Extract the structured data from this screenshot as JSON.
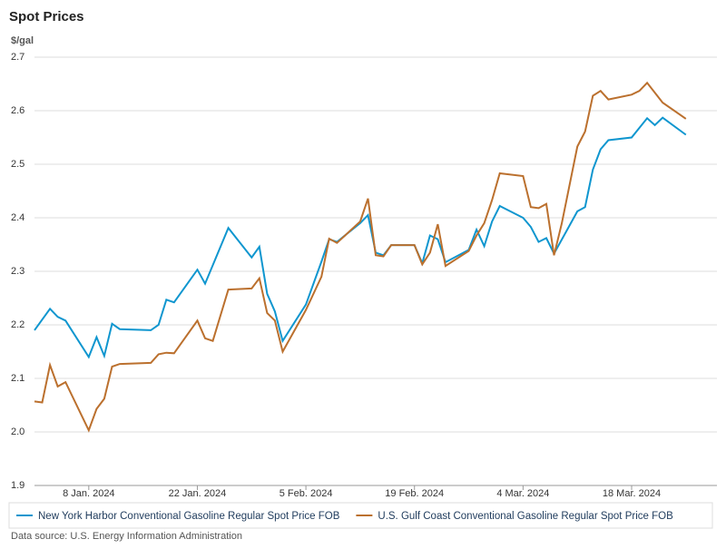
{
  "chart_data": {
    "type": "line",
    "title": "Spot Prices",
    "y_axis_label": "$/gal",
    "source": "Data source: U.S. Energy Information Administration",
    "xlim": [
      "2024-01-01",
      "2024-03-29"
    ],
    "xticks": [
      {
        "value": "2024-01-08",
        "label": "8 Jan. 2024"
      },
      {
        "value": "2024-01-22",
        "label": "22 Jan. 2024"
      },
      {
        "value": "2024-02-05",
        "label": "5 Feb. 2024"
      },
      {
        "value": "2024-02-19",
        "label": "19 Feb. 2024"
      },
      {
        "value": "2024-03-04",
        "label": "4 Mar. 2024"
      },
      {
        "value": "2024-03-18",
        "label": "18 Mar. 2024"
      }
    ],
    "ylim": [
      1.9,
      2.7
    ],
    "yticks": [
      1.9,
      {
        "value": 2,
        "label": "2.0"
      },
      2.1,
      2.2,
      2.3,
      2.4,
      2.5,
      2.6,
      2.7
    ],
    "grid": true,
    "series": [
      {
        "name": "New York Harbor Conventional Gasoline Regular Spot Price FOB",
        "color": "#0f96cf",
        "x": [
          "2024-01-01",
          "2024-01-03",
          "2024-01-04",
          "2024-01-05",
          "2024-01-08",
          "2024-01-09",
          "2024-01-10",
          "2024-01-11",
          "2024-01-12",
          "2024-01-16",
          "2024-01-17",
          "2024-01-18",
          "2024-01-19",
          "2024-01-22",
          "2024-01-23",
          "2024-01-26",
          "2024-01-29",
          "2024-01-30",
          "2024-01-31",
          "2024-02-01",
          "2024-02-02",
          "2024-02-05",
          "2024-02-07",
          "2024-02-08",
          "2024-02-09",
          "2024-02-12",
          "2024-02-13",
          "2024-02-14",
          "2024-02-15",
          "2024-02-16",
          "2024-02-19",
          "2024-02-20",
          "2024-02-21",
          "2024-02-22",
          "2024-02-23",
          "2024-02-26",
          "2024-02-27",
          "2024-02-28",
          "2024-02-29",
          "2024-03-01",
          "2024-03-04",
          "2024-03-05",
          "2024-03-06",
          "2024-03-07",
          "2024-03-08",
          "2024-03-11",
          "2024-03-12",
          "2024-03-13",
          "2024-03-14",
          "2024-03-15",
          "2024-03-18",
          "2024-03-20",
          "2024-03-21",
          "2024-03-22",
          "2024-03-25"
        ],
        "values": [
          2.19,
          2.23,
          2.215,
          2.208,
          2.14,
          2.177,
          2.142,
          2.202,
          2.192,
          2.19,
          2.2,
          2.247,
          2.242,
          2.303,
          2.277,
          2.381,
          2.326,
          2.346,
          2.258,
          2.225,
          2.17,
          2.238,
          2.318,
          2.36,
          2.355,
          2.39,
          2.405,
          2.335,
          2.33,
          2.349,
          2.349,
          2.315,
          2.367,
          2.36,
          2.317,
          2.34,
          2.378,
          2.347,
          2.393,
          2.422,
          2.4,
          2.383,
          2.355,
          2.362,
          2.333,
          2.412,
          2.42,
          2.49,
          2.528,
          2.545,
          2.55,
          2.586,
          2.573,
          2.587,
          2.555
        ]
      },
      {
        "name": "U.S. Gulf Coast Conventional Gasoline Regular Spot Price FOB",
        "color": "#bb702e",
        "x": [
          "2024-01-01",
          "2024-01-02",
          "2024-01-03",
          "2024-01-04",
          "2024-01-05",
          "2024-01-08",
          "2024-01-09",
          "2024-01-10",
          "2024-01-11",
          "2024-01-12",
          "2024-01-16",
          "2024-01-17",
          "2024-01-18",
          "2024-01-19",
          "2024-01-22",
          "2024-01-23",
          "2024-01-24",
          "2024-01-26",
          "2024-01-29",
          "2024-01-30",
          "2024-01-31",
          "2024-02-01",
          "2024-02-02",
          "2024-02-05",
          "2024-02-07",
          "2024-02-08",
          "2024-02-09",
          "2024-02-12",
          "2024-02-13",
          "2024-02-14",
          "2024-02-15",
          "2024-02-16",
          "2024-02-19",
          "2024-02-20",
          "2024-02-21",
          "2024-02-22",
          "2024-02-23",
          "2024-02-26",
          "2024-02-27",
          "2024-02-28",
          "2024-02-29",
          "2024-03-01",
          "2024-03-04",
          "2024-03-05",
          "2024-03-06",
          "2024-03-07",
          "2024-03-08",
          "2024-03-09",
          "2024-03-11",
          "2024-03-12",
          "2024-03-13",
          "2024-03-14",
          "2024-03-15",
          "2024-03-18",
          "2024-03-19",
          "2024-03-20",
          "2024-03-22",
          "2024-03-25"
        ],
        "values": [
          2.057,
          2.055,
          2.125,
          2.085,
          2.093,
          2.003,
          2.043,
          2.062,
          2.122,
          2.127,
          2.129,
          2.145,
          2.148,
          2.147,
          2.208,
          2.175,
          2.17,
          2.266,
          2.268,
          2.287,
          2.222,
          2.208,
          2.15,
          2.228,
          2.29,
          2.361,
          2.353,
          2.393,
          2.436,
          2.33,
          2.328,
          2.349,
          2.349,
          2.313,
          2.335,
          2.388,
          2.31,
          2.338,
          2.367,
          2.39,
          2.433,
          2.483,
          2.478,
          2.42,
          2.418,
          2.426,
          2.33,
          2.39,
          2.533,
          2.561,
          2.628,
          2.637,
          2.621,
          2.63,
          2.637,
          2.652,
          2.615,
          2.585
        ]
      }
    ]
  }
}
